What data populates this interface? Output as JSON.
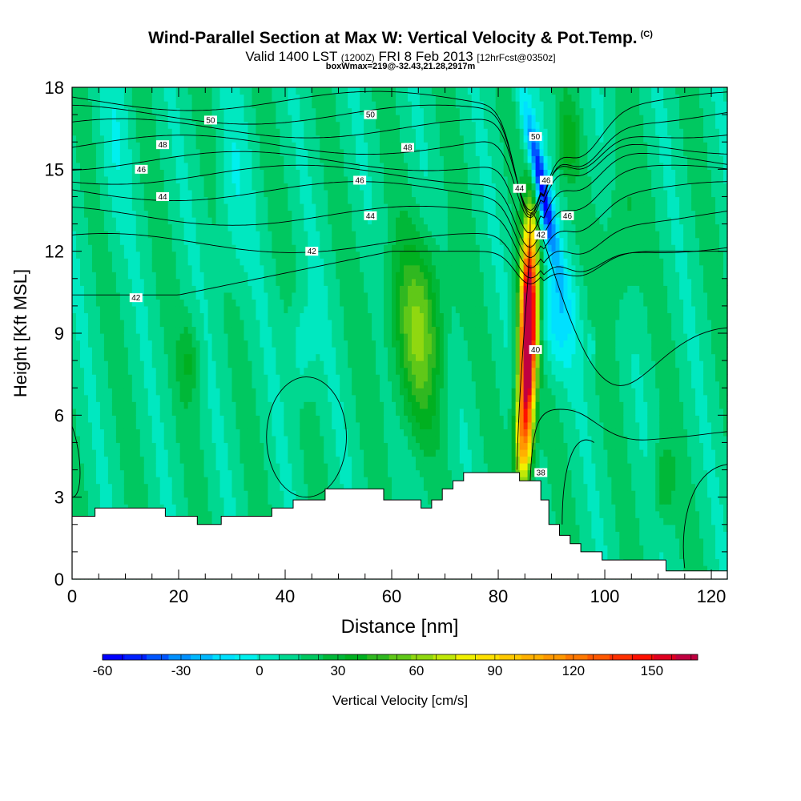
{
  "chart_data": {
    "type": "heatmap",
    "title": "Wind-Parallel Section at Max W: Vertical Velocity & Pot.Temp.",
    "title_mark": "(C)",
    "subtitle_main": "Valid 1400 LST",
    "subtitle_utc": "(1200Z)",
    "subtitle_date": "FRI 8 Feb 2013",
    "subtitle_fcst": "[12hrFcst@0350z]",
    "subtitle2": "boxWmax=219@-32.43,21.28,2917m",
    "xlabel": "Distance [nm]",
    "ylabel": "Height [Kft MSL]",
    "xlim": [
      0,
      123
    ],
    "ylim": [
      0,
      18
    ],
    "x_ticks": [
      0,
      20,
      40,
      60,
      80,
      100,
      120
    ],
    "y_ticks": [
      0,
      3,
      6,
      9,
      12,
      15,
      18
    ],
    "colorbar": {
      "label": "Vertical Velocity [cm/s]",
      "ticks": [
        -60,
        -30,
        0,
        30,
        60,
        90,
        120,
        150
      ],
      "min": -60,
      "max": 167.5,
      "step": 7.5,
      "colors": [
        "#0000ff",
        "#0020ff",
        "#0055ff",
        "#0090ff",
        "#00b8ff",
        "#00e0ff",
        "#00f0ee",
        "#00e8c0",
        "#00d890",
        "#00c860",
        "#00b838",
        "#00b020",
        "#30b820",
        "#60c818",
        "#90d810",
        "#c0e808",
        "#f0f000",
        "#ffe000",
        "#ffc800",
        "#ffb000",
        "#ff9800",
        "#ff7800",
        "#ff5800",
        "#ff3000",
        "#ff1000",
        "#e00020",
        "#c00040"
      ]
    },
    "contour_series": {
      "name": "Pot.Temp. (C)",
      "contour_levels": [
        38,
        40,
        42,
        44,
        46,
        48,
        50
      ],
      "labels": [
        {
          "x": 26,
          "y": 16.8,
          "value": "50"
        },
        {
          "x": 56,
          "y": 17.0,
          "value": "50"
        },
        {
          "x": 87,
          "y": 16.2,
          "value": "50"
        },
        {
          "x": 17,
          "y": 15.9,
          "value": "48"
        },
        {
          "x": 63,
          "y": 15.8,
          "value": "48"
        },
        {
          "x": 13,
          "y": 15.0,
          "value": "46"
        },
        {
          "x": 54,
          "y": 14.6,
          "value": "46"
        },
        {
          "x": 89,
          "y": 14.6,
          "value": "46"
        },
        {
          "x": 93,
          "y": 13.3,
          "value": "46"
        },
        {
          "x": 17,
          "y": 14.0,
          "value": "44"
        },
        {
          "x": 56,
          "y": 13.3,
          "value": "44"
        },
        {
          "x": 84,
          "y": 14.3,
          "value": "44"
        },
        {
          "x": 45,
          "y": 12.0,
          "value": "42"
        },
        {
          "x": 12,
          "y": 10.3,
          "value": "42"
        },
        {
          "x": 88,
          "y": 12.6,
          "value": "42"
        },
        {
          "x": 87,
          "y": 8.4,
          "value": "40"
        },
        {
          "x": 88,
          "y": 3.9,
          "value": "38"
        }
      ]
    },
    "terrain_height_kft": [
      [
        0,
        2.3
      ],
      [
        4.3,
        2.3
      ],
      [
        4.3,
        2.6
      ],
      [
        17.5,
        2.6
      ],
      [
        17.5,
        2.3
      ],
      [
        23.5,
        2.3
      ],
      [
        23.5,
        2.0
      ],
      [
        28,
        2.0
      ],
      [
        28,
        2.3
      ],
      [
        37.5,
        2.3
      ],
      [
        37.5,
        2.6
      ],
      [
        41.5,
        2.6
      ],
      [
        41.5,
        2.9
      ],
      [
        47.5,
        2.9
      ],
      [
        47.5,
        3.3
      ],
      [
        58.5,
        3.3
      ],
      [
        58.5,
        2.9
      ],
      [
        65.5,
        2.9
      ],
      [
        65.5,
        2.6
      ],
      [
        67.5,
        2.6
      ],
      [
        67.5,
        2.9
      ],
      [
        69.5,
        2.9
      ],
      [
        69.5,
        3.3
      ],
      [
        71.5,
        3.3
      ],
      [
        71.5,
        3.6
      ],
      [
        73.5,
        3.6
      ],
      [
        73.5,
        3.9
      ],
      [
        84,
        3.9
      ],
      [
        84,
        3.6
      ],
      [
        88,
        3.6
      ],
      [
        88,
        2.9
      ],
      [
        89.5,
        2.9
      ],
      [
        89.5,
        2.0
      ],
      [
        91.5,
        2.0
      ],
      [
        91.5,
        1.6
      ],
      [
        93.5,
        1.6
      ],
      [
        93.5,
        1.3
      ],
      [
        95.5,
        1.3
      ],
      [
        95.5,
        1.0
      ],
      [
        99.5,
        1.0
      ],
      [
        99.5,
        0.7
      ],
      [
        111.5,
        0.7
      ],
      [
        111.5,
        0.3
      ],
      [
        123,
        0.3
      ]
    ]
  }
}
